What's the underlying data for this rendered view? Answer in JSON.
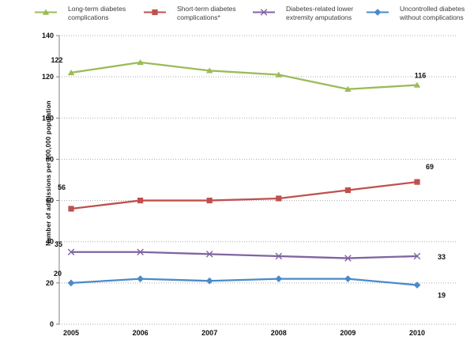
{
  "chart_data": {
    "type": "line",
    "x": [
      "2005",
      "2006",
      "2007",
      "2008",
      "2009",
      "2010"
    ],
    "series": [
      {
        "name": "Long-term diabetes complications",
        "legend_lines": [
          "Long-term diabetes",
          "complications"
        ],
        "color": "#9BBB59",
        "marker": "triangle",
        "values": [
          122,
          127,
          123,
          121,
          114,
          116
        ],
        "first_label": "122",
        "last_label": "116",
        "first_label_offset": [
          -18,
          -13
        ],
        "last_label_offset": [
          4,
          -9
        ]
      },
      {
        "name": "Short-term diabetes complications*",
        "legend_lines": [
          "Short-term diabetes",
          "complications*"
        ],
        "color": "#C0504D",
        "marker": "square",
        "values": [
          56,
          60,
          60,
          61,
          65,
          69
        ],
        "first_label": "56",
        "last_label": "69",
        "first_label_offset": [
          -12,
          -24
        ],
        "last_label_offset": [
          16,
          -16
        ]
      },
      {
        "name": "Diabetes-related lower extremity amputations",
        "legend_lines": [
          "Diabetes-related lower",
          "extremity amputations"
        ],
        "color": "#8064A2",
        "marker": "x",
        "values": [
          35,
          35,
          34,
          33,
          32,
          33
        ],
        "first_label": "35",
        "last_label": "33",
        "first_label_offset": [
          -16,
          -7
        ],
        "last_label_offset": [
          31,
          4
        ]
      },
      {
        "name": "Uncontrolled diabetes without complications",
        "legend_lines": [
          "Uncontrolled diabetes",
          "without complications"
        ],
        "color": "#4A8AC9",
        "marker": "diamond",
        "values": [
          20,
          22,
          21,
          22,
          22,
          19
        ],
        "first_label": "20",
        "last_label": "19",
        "first_label_offset": [
          -17,
          -9
        ],
        "last_label_offset": [
          31,
          16
        ]
      }
    ],
    "ylabel": "Number of admissions per 100,000 population",
    "ylim": [
      0,
      140
    ],
    "ytick_step": 20,
    "grid": "horizontal-dotted",
    "legend_position": "top"
  },
  "colors": {
    "grid": "#ABABAB",
    "axis": "#808080",
    "label_text": "#111111",
    "legend_text": "#3d3d3d"
  }
}
